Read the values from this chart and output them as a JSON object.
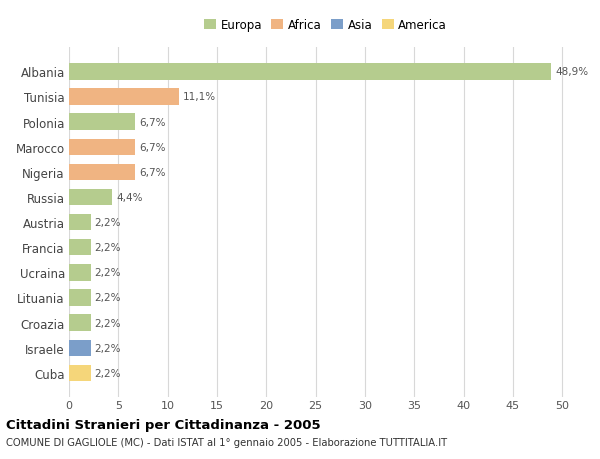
{
  "categories": [
    "Albania",
    "Tunisia",
    "Polonia",
    "Marocco",
    "Nigeria",
    "Russia",
    "Austria",
    "Francia",
    "Ucraina",
    "Lituania",
    "Croazia",
    "Israele",
    "Cuba"
  ],
  "values": [
    48.9,
    11.1,
    6.7,
    6.7,
    6.7,
    4.4,
    2.2,
    2.2,
    2.2,
    2.2,
    2.2,
    2.2,
    2.2
  ],
  "labels": [
    "48,9%",
    "11,1%",
    "6,7%",
    "6,7%",
    "6,7%",
    "4,4%",
    "2,2%",
    "2,2%",
    "2,2%",
    "2,2%",
    "2,2%",
    "2,2%",
    "2,2%"
  ],
  "colors": [
    "#b5cc8e",
    "#f0b482",
    "#b5cc8e",
    "#f0b482",
    "#f0b482",
    "#b5cc8e",
    "#b5cc8e",
    "#b5cc8e",
    "#b5cc8e",
    "#b5cc8e",
    "#b5cc8e",
    "#7b9ec9",
    "#f5d67a"
  ],
  "legend_labels": [
    "Europa",
    "Africa",
    "Asia",
    "America"
  ],
  "legend_colors": [
    "#b5cc8e",
    "#f0b482",
    "#7b9ec9",
    "#f5d67a"
  ],
  "xlim": [
    0,
    52
  ],
  "xticks": [
    0,
    5,
    10,
    15,
    20,
    25,
    30,
    35,
    40,
    45,
    50
  ],
  "title": "Cittadini Stranieri per Cittadinanza - 2005",
  "subtitle": "COMUNE DI GAGLIOLE (MC) - Dati ISTAT al 1° gennaio 2005 - Elaborazione TUTTITALIA.IT",
  "bg_color": "#ffffff",
  "grid_color": "#d8d8d8",
  "bar_height": 0.65
}
